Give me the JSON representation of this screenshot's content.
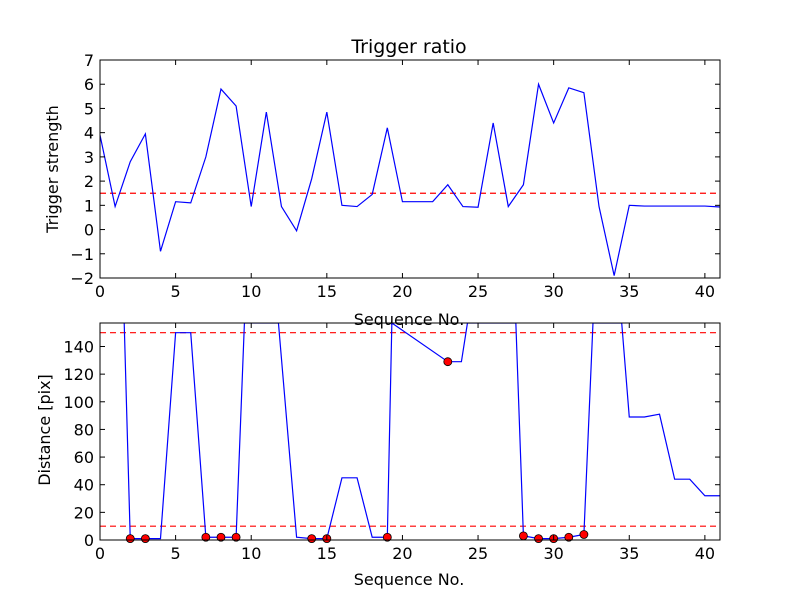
{
  "chart_data": [
    {
      "type": "line",
      "title": "Trigger ratio",
      "xlabel": "Sequence No.",
      "ylabel": "Trigger strength",
      "xlim": [
        0,
        41
      ],
      "ylim": [
        -2,
        7
      ],
      "xticks": [
        "0",
        "5",
        "10",
        "15",
        "20",
        "25",
        "30",
        "35",
        "40"
      ],
      "yticks": [
        "−2",
        "−1",
        "0",
        "1",
        "2",
        "3",
        "4",
        "5",
        "6",
        "7"
      ],
      "grid": false,
      "series": [
        {
          "color": "#0000ff",
          "x": [
            0,
            1,
            2,
            3,
            4,
            5,
            6,
            7,
            8,
            9,
            10,
            11,
            12,
            13,
            14,
            15,
            16,
            17,
            18,
            19,
            20,
            21,
            22,
            23,
            24,
            25,
            26,
            27,
            28,
            29,
            30,
            31,
            32,
            33,
            34,
            35,
            36,
            37,
            38,
            39,
            40,
            41
          ],
          "y": [
            3.9,
            0.95,
            2.8,
            3.95,
            -0.9,
            1.15,
            1.1,
            3.0,
            5.8,
            5.1,
            0.95,
            4.85,
            0.95,
            -0.05,
            2.1,
            4.85,
            1.0,
            0.95,
            1.45,
            4.2,
            1.15,
            1.15,
            1.15,
            1.85,
            0.95,
            0.92,
            4.4,
            0.95,
            1.85,
            6.0,
            4.4,
            5.85,
            5.65,
            0.95,
            -1.9,
            1.0,
            0.97,
            0.97,
            0.97,
            0.97,
            0.97,
            0.93
          ]
        }
      ],
      "threshold": {
        "y": 1.5,
        "color": "#ff0000",
        "style": "dashed"
      }
    },
    {
      "type": "line",
      "title": "",
      "xlabel": "Sequence No.",
      "ylabel": "Distance [pix]",
      "xlim": [
        0,
        41
      ],
      "ylim": [
        0,
        157
      ],
      "xticks": [
        "0",
        "5",
        "10",
        "15",
        "20",
        "25",
        "30",
        "35",
        "40"
      ],
      "yticks": [
        "0",
        "20",
        "40",
        "60",
        "80",
        "100",
        "120",
        "140"
      ],
      "grid": false,
      "series": [
        {
          "color": "#0000ff",
          "x": [
            1.6,
            2,
            3,
            4,
            5,
            6,
            7,
            8,
            9,
            9.55,
            11.8,
            13,
            14,
            15,
            16,
            17,
            18,
            19,
            19.3,
            23,
            23.9,
            24.3,
            27.5,
            28,
            29,
            30,
            31,
            32,
            32.6,
            34.5,
            35,
            36,
            37,
            38,
            39,
            40,
            41
          ],
          "y": [
            157,
            1,
            1,
            1,
            150,
            150,
            2,
            2,
            2,
            157,
            157,
            2,
            1,
            1,
            45,
            45,
            2,
            2,
            157,
            129,
            129,
            157,
            157,
            3,
            1,
            1,
            2,
            4,
            157,
            157,
            89,
            89,
            91,
            44,
            44,
            32,
            32
          ]
        }
      ],
      "markers": {
        "color": "#ff0000",
        "x": [
          2,
          3,
          7,
          8,
          9,
          14,
          15,
          19,
          23,
          28,
          29,
          30,
          31,
          32
        ],
        "y": [
          1,
          1,
          2,
          2,
          2,
          1,
          1,
          2,
          129,
          3,
          1,
          1,
          2,
          4
        ]
      },
      "thresholds": [
        {
          "y": 150,
          "color": "#ff0000",
          "style": "dashed"
        },
        {
          "y": 10,
          "color": "#ff0000",
          "style": "dashed"
        }
      ]
    }
  ]
}
